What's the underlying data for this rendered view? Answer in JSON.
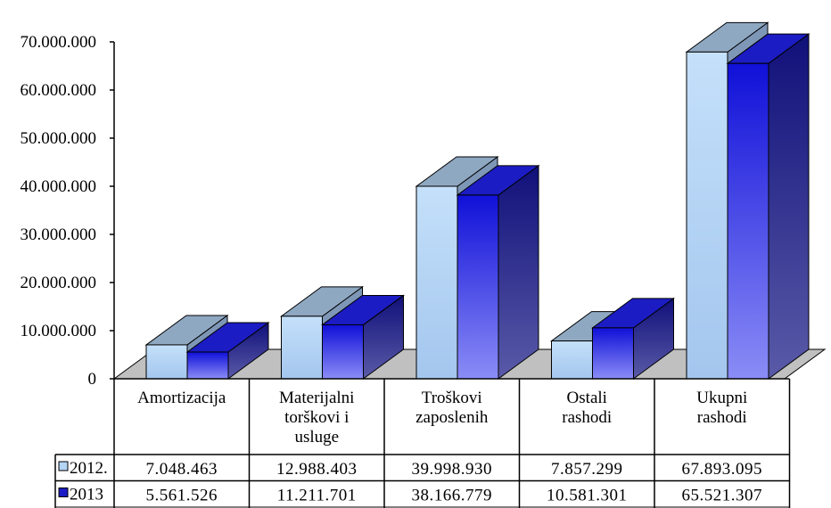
{
  "chart_data": {
    "type": "bar",
    "categories": [
      [
        "Amortizacija"
      ],
      [
        "Materijalni",
        "torškovi i",
        "usluge"
      ],
      [
        "Troškovi",
        "zaposlenih"
      ],
      [
        "Ostali",
        "rashodi"
      ],
      [
        "Ukupni",
        "rashodi"
      ]
    ],
    "series": [
      {
        "name": "2012.",
        "values": [
          7048463,
          12988403,
          39998930,
          7857299,
          67893095
        ],
        "labels": [
          "7.048.463",
          "12.988.403",
          "39.998.930",
          "7.857.299",
          "67.893.095"
        ],
        "colors": {
          "front": "#b4d5f4",
          "top": "#8fa8c2",
          "side": "#7e97b6"
        }
      },
      {
        "name": "2013",
        "values": [
          5561526,
          11211701,
          38166779,
          10581301,
          65521307
        ],
        "labels": [
          "5.561.526",
          "11.211.701",
          "38.166.779",
          "10.581.301",
          "65.521.307"
        ],
        "colors": {
          "front": "#2b35e0",
          "top": "#1c1cc4",
          "side": "#23237e"
        }
      }
    ],
    "yticks": [
      "0",
      "10.000.000",
      "20.000.000",
      "30.000.000",
      "40.000.000",
      "50.000.000",
      "60.000.000",
      "70.000.000"
    ],
    "ylim": [
      0,
      70000000
    ],
    "title": "",
    "xlabel": "",
    "ylabel": "",
    "legend": "data-table",
    "three_d": true,
    "grid": false
  }
}
